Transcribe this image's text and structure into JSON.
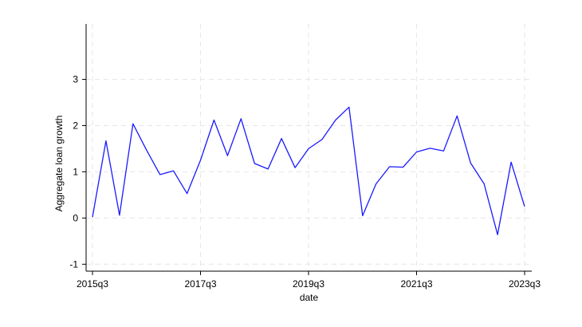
{
  "chart_data": {
    "type": "line",
    "title": "",
    "xlabel": "date",
    "ylabel": "Aggregate loan growth",
    "x": [
      "2015q3",
      "2015q4",
      "2016q1",
      "2016q2",
      "2016q3",
      "2016q4",
      "2017q1",
      "2017q2",
      "2017q3",
      "2017q4",
      "2018q1",
      "2018q2",
      "2018q3",
      "2018q4",
      "2019q1",
      "2019q2",
      "2019q3",
      "2019q4",
      "2020q1",
      "2020q2",
      "2020q3",
      "2020q4",
      "2021q1",
      "2021q2",
      "2021q3",
      "2021q4",
      "2022q1",
      "2022q2",
      "2022q3",
      "2022q4",
      "2023q1",
      "2023q2",
      "2023q3"
    ],
    "series": [
      {
        "values": [
          0.02,
          1.67,
          0.06,
          2.04,
          1.47,
          0.94,
          1.02,
          0.53,
          1.25,
          2.12,
          1.35,
          2.15,
          1.18,
          1.06,
          1.72,
          1.09,
          1.5,
          1.7,
          2.12,
          2.4,
          0.05,
          0.74,
          1.11,
          1.1,
          1.43,
          1.51,
          1.45,
          2.21,
          1.19,
          0.74,
          -0.36,
          1.21,
          0.25
        ],
        "color": "#1a1aff"
      }
    ],
    "x_ticks": [
      "2015q3",
      "2017q3",
      "2019q3",
      "2021q3",
      "2023q3"
    ],
    "y_ticks": [
      "-1",
      "0",
      "1",
      "2",
      "3"
    ],
    "ylim": [
      -1.15,
      4.2
    ],
    "grid": true,
    "legend": "none",
    "background": "#ffffff",
    "grid_color": "#e6e6e6"
  }
}
